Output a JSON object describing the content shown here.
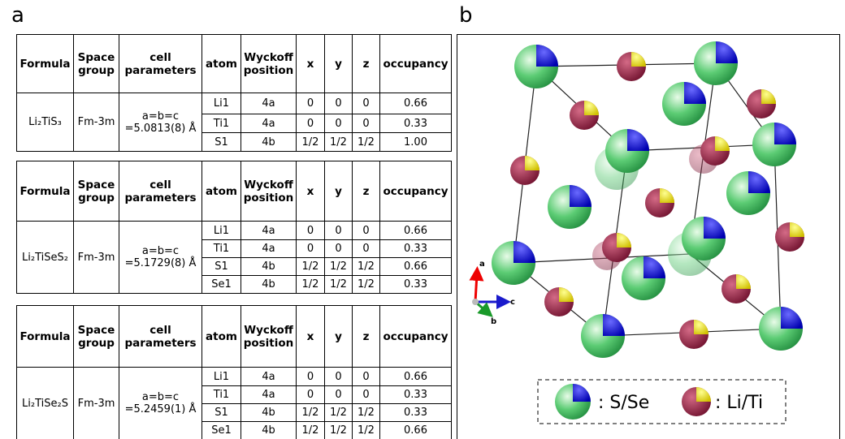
{
  "panel_a": "a",
  "panel_b": "b",
  "tables": [
    {
      "header": [
        "Formula",
        "Space group",
        "cell parameters",
        "atom",
        "Wyckoff position",
        "x",
        "y",
        "z",
        "occupancy"
      ],
      "formula": "Li₂TiS₃",
      "space_group": "Fm-3m",
      "cell": [
        "a=b=c",
        "=5.0813(8) Å"
      ],
      "rows": [
        [
          "Li1",
          "4a",
          "0",
          "0",
          "0",
          "0.66"
        ],
        [
          "Ti1",
          "4a",
          "0",
          "0",
          "0",
          "0.33"
        ],
        [
          "S1",
          "4b",
          "1/2",
          "1/2",
          "1/2",
          "1.00"
        ]
      ]
    },
    {
      "header": [
        "Formula",
        "Space group",
        "cell parameters",
        "atom",
        "Wyckoff position",
        "x",
        "y",
        "z",
        "occupancy"
      ],
      "formula": "Li₂TiSeS₂",
      "space_group": "Fm-3m",
      "cell": [
        "a=b=c",
        "=5.1729(8) Å"
      ],
      "rows": [
        [
          "Li1",
          "4a",
          "0",
          "0",
          "0",
          "0.66"
        ],
        [
          "Ti1",
          "4a",
          "0",
          "0",
          "0",
          "0.33"
        ],
        [
          "S1",
          "4b",
          "1/2",
          "1/2",
          "1/2",
          "0.66"
        ],
        [
          "Se1",
          "4b",
          "1/2",
          "1/2",
          "1/2",
          "0.33"
        ]
      ]
    },
    {
      "header": [
        "Formula",
        "Space group",
        "cell parameters",
        "atom",
        "Wyckoff position",
        "x",
        "y",
        "z",
        "occupancy"
      ],
      "formula": "Li₂TiSe₂S",
      "space_group": "Fm-3m",
      "cell": [
        "a=b=c",
        "=5.2459(1) Å"
      ],
      "rows": [
        [
          "Li1",
          "4a",
          "0",
          "0",
          "0",
          "0.66"
        ],
        [
          "Ti1",
          "4a",
          "0",
          "0",
          "0",
          "0.33"
        ],
        [
          "S1",
          "4b",
          "1/2",
          "1/2",
          "1/2",
          "0.33"
        ],
        [
          "Se1",
          "4b",
          "1/2",
          "1/2",
          "1/2",
          "0.66"
        ]
      ]
    }
  ],
  "axes": [
    "a",
    "b",
    "c"
  ],
  "legend": [
    ": S/Se",
    ": Li/Ti"
  ]
}
